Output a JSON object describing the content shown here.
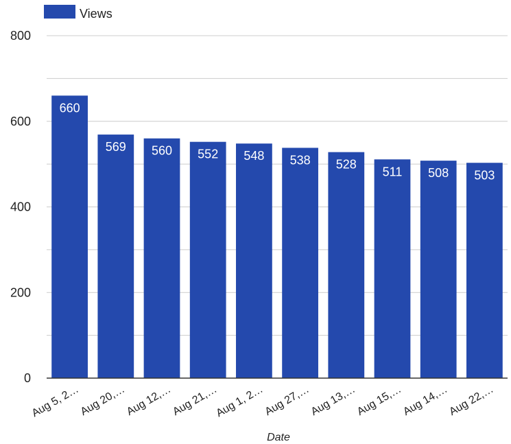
{
  "chart_data": {
    "type": "bar",
    "xlabel": "Date",
    "ylabel": "",
    "categories": [
      "Aug 5, 2…",
      "Aug 20,…",
      "Aug 12,…",
      "Aug 21,…",
      "Aug 1, 2…",
      "Aug 27,…",
      "Aug 13,…",
      "Aug 15,…",
      "Aug 14,…",
      "Aug 22,…"
    ],
    "series": [
      {
        "name": "Views",
        "values": [
          660,
          569,
          560,
          552,
          548,
          538,
          528,
          511,
          508,
          503
        ]
      }
    ],
    "ylim": [
      0,
      800
    ],
    "y_ticks": [
      "0",
      "200",
      "400",
      "600",
      "800"
    ],
    "grid": true,
    "legend_position": "top-left",
    "colors": {
      "bar": "#2449ad",
      "grid": "#cccccc",
      "axis": "#333333"
    }
  }
}
